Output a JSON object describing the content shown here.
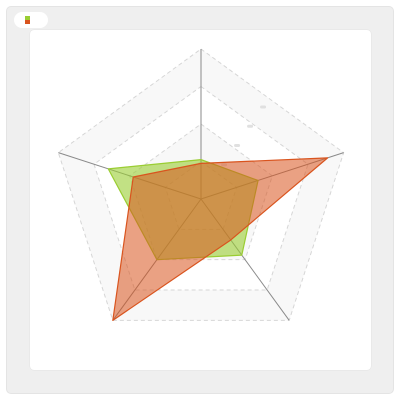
{
  "chart_data": {
    "type": "radar",
    "title": "",
    "axes": [
      "",
      "",
      "",
      "",
      ""
    ],
    "range": [
      0,
      4
    ],
    "rings": 4,
    "grid": true,
    "legend_position": "top-left",
    "series": [
      {
        "name": "",
        "color": "#9acd32",
        "values": [
          1.05,
          1.6,
          1.85,
          2.0,
          2.6
        ]
      },
      {
        "name": "",
        "color": "#d9541e",
        "values": [
          0.95,
          3.55,
          1.35,
          4.0,
          1.9
        ]
      }
    ]
  }
}
